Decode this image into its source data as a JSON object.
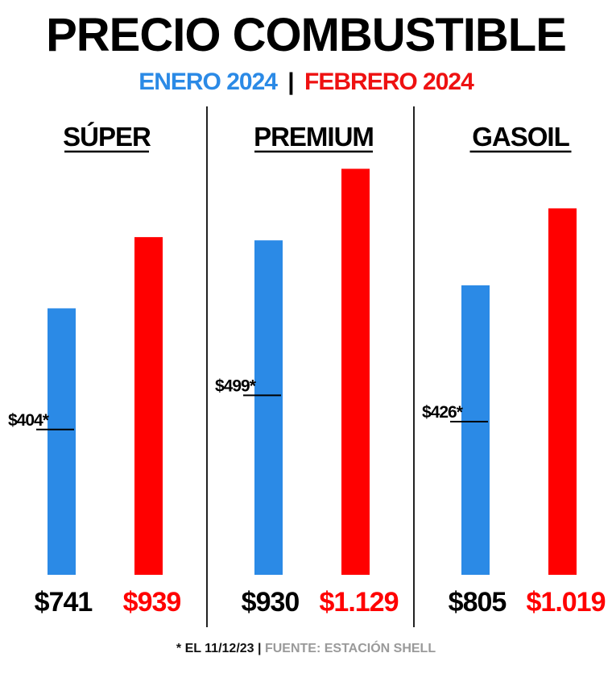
{
  "title": "PRECIO COMBUSTIBLE",
  "subtitle": {
    "january": "ENERO 2024",
    "separator": "|",
    "february": "FEBRERO 2024"
  },
  "footer": {
    "note": "* EL 11/12/23",
    "separator": "|",
    "source": "FUENTE: ESTACIÓN SHELL"
  },
  "colors": {
    "january": "#2b8ae6",
    "february": "#ff0000",
    "text": "#000000"
  },
  "chart_data": {
    "type": "bar",
    "categories": [
      "SÚPER",
      "PREMIUM",
      "GASOIL"
    ],
    "series": [
      {
        "name": "ENERO 2024",
        "values": [
          741,
          930,
          805
        ],
        "labels": [
          "$741",
          "$930",
          "$805"
        ]
      },
      {
        "name": "FEBRERO 2024",
        "values": [
          939,
          1129,
          1019
        ],
        "labels": [
          "$939",
          "$1.129",
          "$1.019"
        ]
      }
    ],
    "reference": {
      "values": [
        404,
        499,
        426
      ],
      "labels": [
        "$404*",
        "$499*",
        "$426*"
      ]
    },
    "ylim": [
      0,
      1150
    ]
  }
}
